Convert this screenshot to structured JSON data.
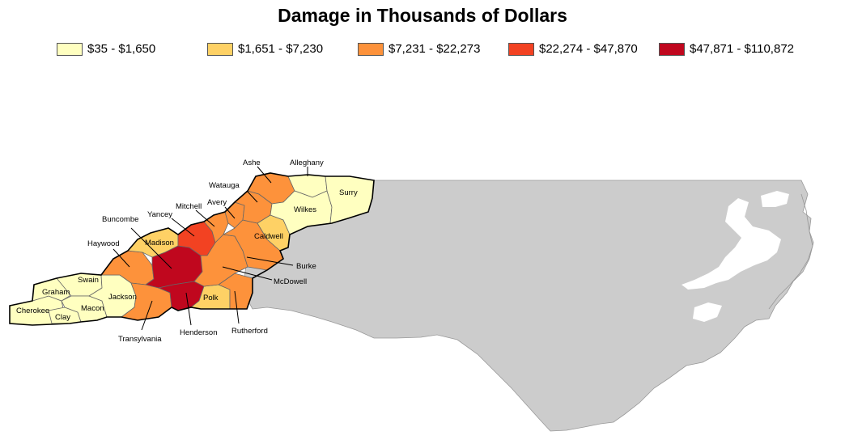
{
  "title": "Damage in Thousands of Dollars",
  "legend": [
    {
      "label": "$35 - $1,650",
      "color": "#FFFFC0"
    },
    {
      "label": "$1,651 - $7,230",
      "color": "#FED165"
    },
    {
      "label": "$7,231 - $22,273",
      "color": "#FD923B"
    },
    {
      "label": "$22,274 - $47,870",
      "color": "#F24222"
    },
    {
      "label": "$47,871 - $110,872",
      "color": "#C0071E"
    }
  ],
  "counties": {
    "ashe": "Ashe",
    "alleghany": "Alleghany",
    "surry": "Surry",
    "watauga": "Watauga",
    "wilkes": "Wilkes",
    "avery": "Avery",
    "mitchell": "Mitchell",
    "caldwell": "Caldwell",
    "yancey": "Yancey",
    "buncombe": "Buncombe",
    "madison": "Madison",
    "haywood": "Haywood",
    "burke": "Burke",
    "mcdowell": "McDowell",
    "swain": "Swain",
    "graham": "Graham",
    "jackson": "Jackson",
    "cherokee": "Cherokee",
    "macon": "Macon",
    "clay": "Clay",
    "polk": "Polk",
    "transylvania": "Transylvania",
    "henderson": "Henderson",
    "rutherford": "Rutherford"
  },
  "colors": {
    "state_fill": "#CCCCCC",
    "county_border": "#666666",
    "outline": "#000000"
  }
}
